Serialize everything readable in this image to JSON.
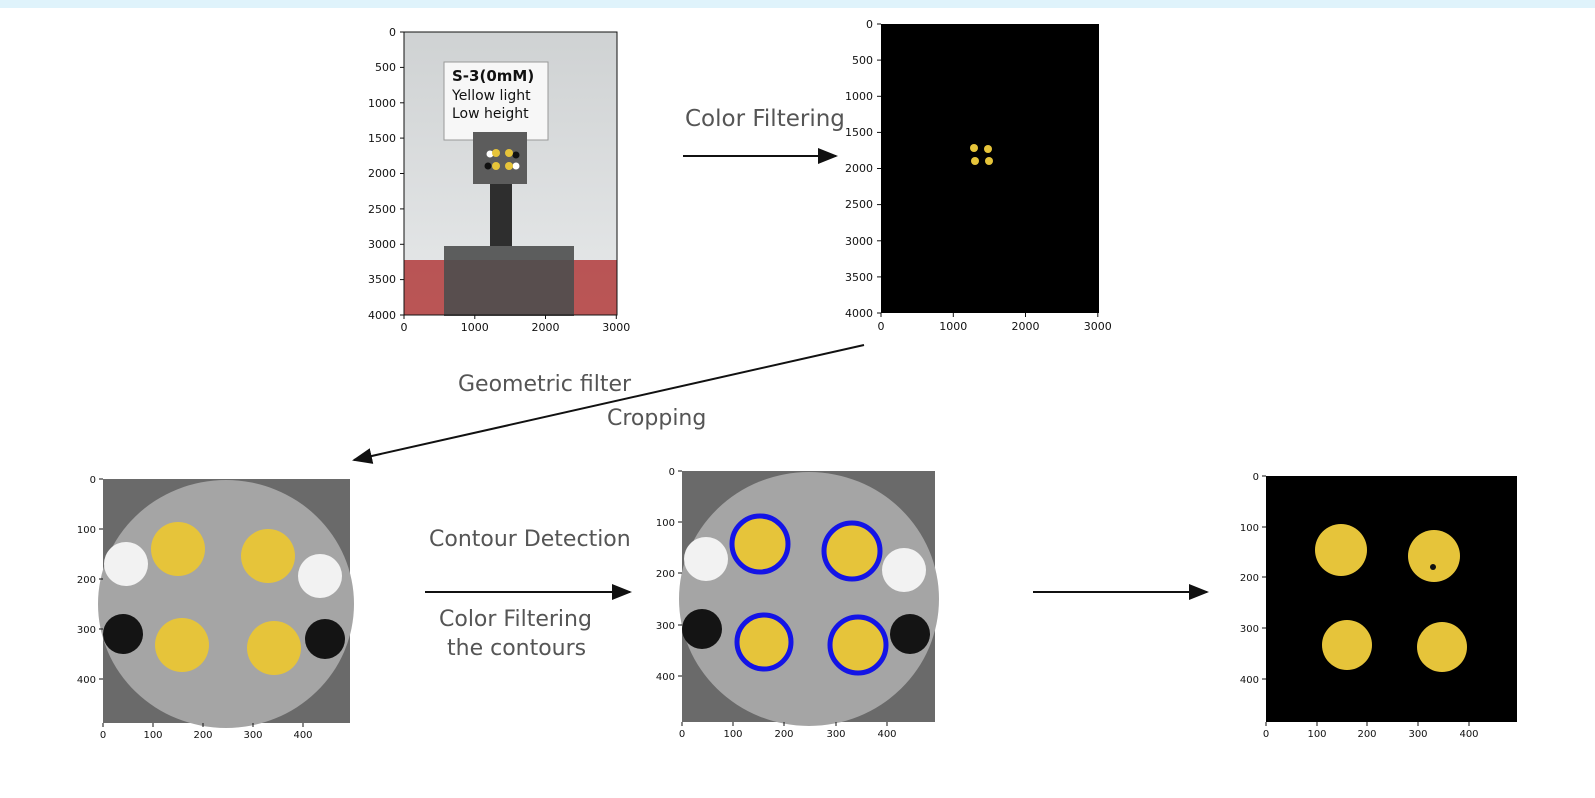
{
  "header_strip_color": "#dff3fb",
  "labels": {
    "color_filtering": "Color Filtering",
    "geometric_filter": "Geometric filter",
    "cropping": "Cropping",
    "contour_detection": "Contour Detection",
    "color_filtering_contours_line1": "Color Filtering",
    "color_filtering_contours_line2": "the contours"
  },
  "photo_sign": {
    "line1": "S-3(0mM)",
    "line2": "Yellow light",
    "line3": "Low height"
  },
  "axes": {
    "full_image": {
      "x_ticks": [
        "0",
        "1000",
        "2000",
        "3000"
      ],
      "y_ticks": [
        "0",
        "500",
        "1000",
        "1500",
        "2000",
        "2500",
        "3000",
        "3500",
        "4000"
      ]
    },
    "crop_image": {
      "x_ticks": [
        "0",
        "100",
        "200",
        "300",
        "400"
      ],
      "y_ticks": [
        "0",
        "100",
        "200",
        "300",
        "400"
      ]
    }
  },
  "colors": {
    "arrow": "#111111",
    "label_text": "#555555",
    "contour": "#1414e6",
    "dot_yellow": "#e6c43a",
    "background_black": "#000000"
  }
}
